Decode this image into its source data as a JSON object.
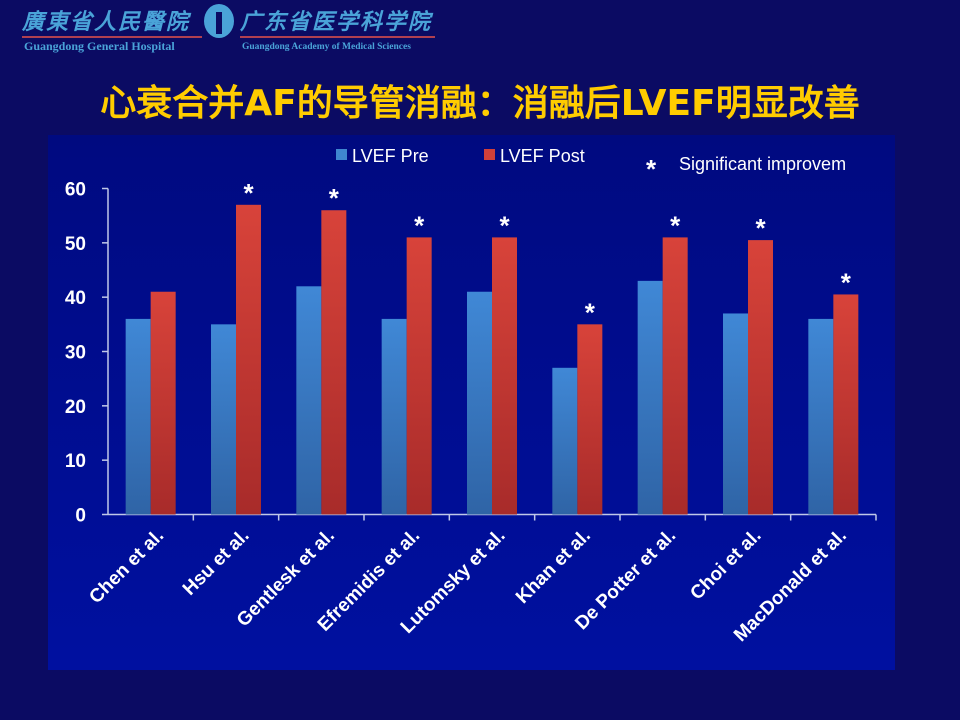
{
  "header": {
    "hospital_cn": "廣東省人民醫院",
    "hospital_en": "Guangdong General Hospital",
    "academy_cn": "广东省医学科学院",
    "academy_en": "Guangdong Academy of Medical Sciences"
  },
  "title": "心衰合并AF的导管消融：消融后LVEF明显改善",
  "chart_data": {
    "type": "bar",
    "title": "心衰合并AF的导管消融：消融后LVEF明显改善",
    "xlabel": "",
    "ylabel": "",
    "ylim": [
      0,
      60
    ],
    "yticks": [
      0,
      10,
      20,
      30,
      40,
      50,
      60
    ],
    "legend_position": "top",
    "categories": [
      "Chen et al.",
      "Hsu et al.",
      "Gentlesk et al.",
      "Efremidis et al.",
      "Lutomsky et al.",
      "Khan et al.",
      "De Potter et al.",
      "Choi et al.",
      "MacDonald et al."
    ],
    "series": [
      {
        "name": "LVEF Pre",
        "color": "#3f86d0",
        "values": [
          36,
          35,
          42,
          36,
          41,
          27,
          43,
          37,
          36
        ]
      },
      {
        "name": "LVEF Post",
        "color": "#d0403a",
        "values": [
          41,
          57,
          56,
          51,
          51,
          35,
          51,
          50.5,
          40.5
        ]
      }
    ],
    "significant": [
      false,
      true,
      true,
      true,
      true,
      true,
      true,
      true,
      true
    ],
    "annotation_legend": {
      "symbol": "*",
      "label": "Significant improvem"
    }
  }
}
